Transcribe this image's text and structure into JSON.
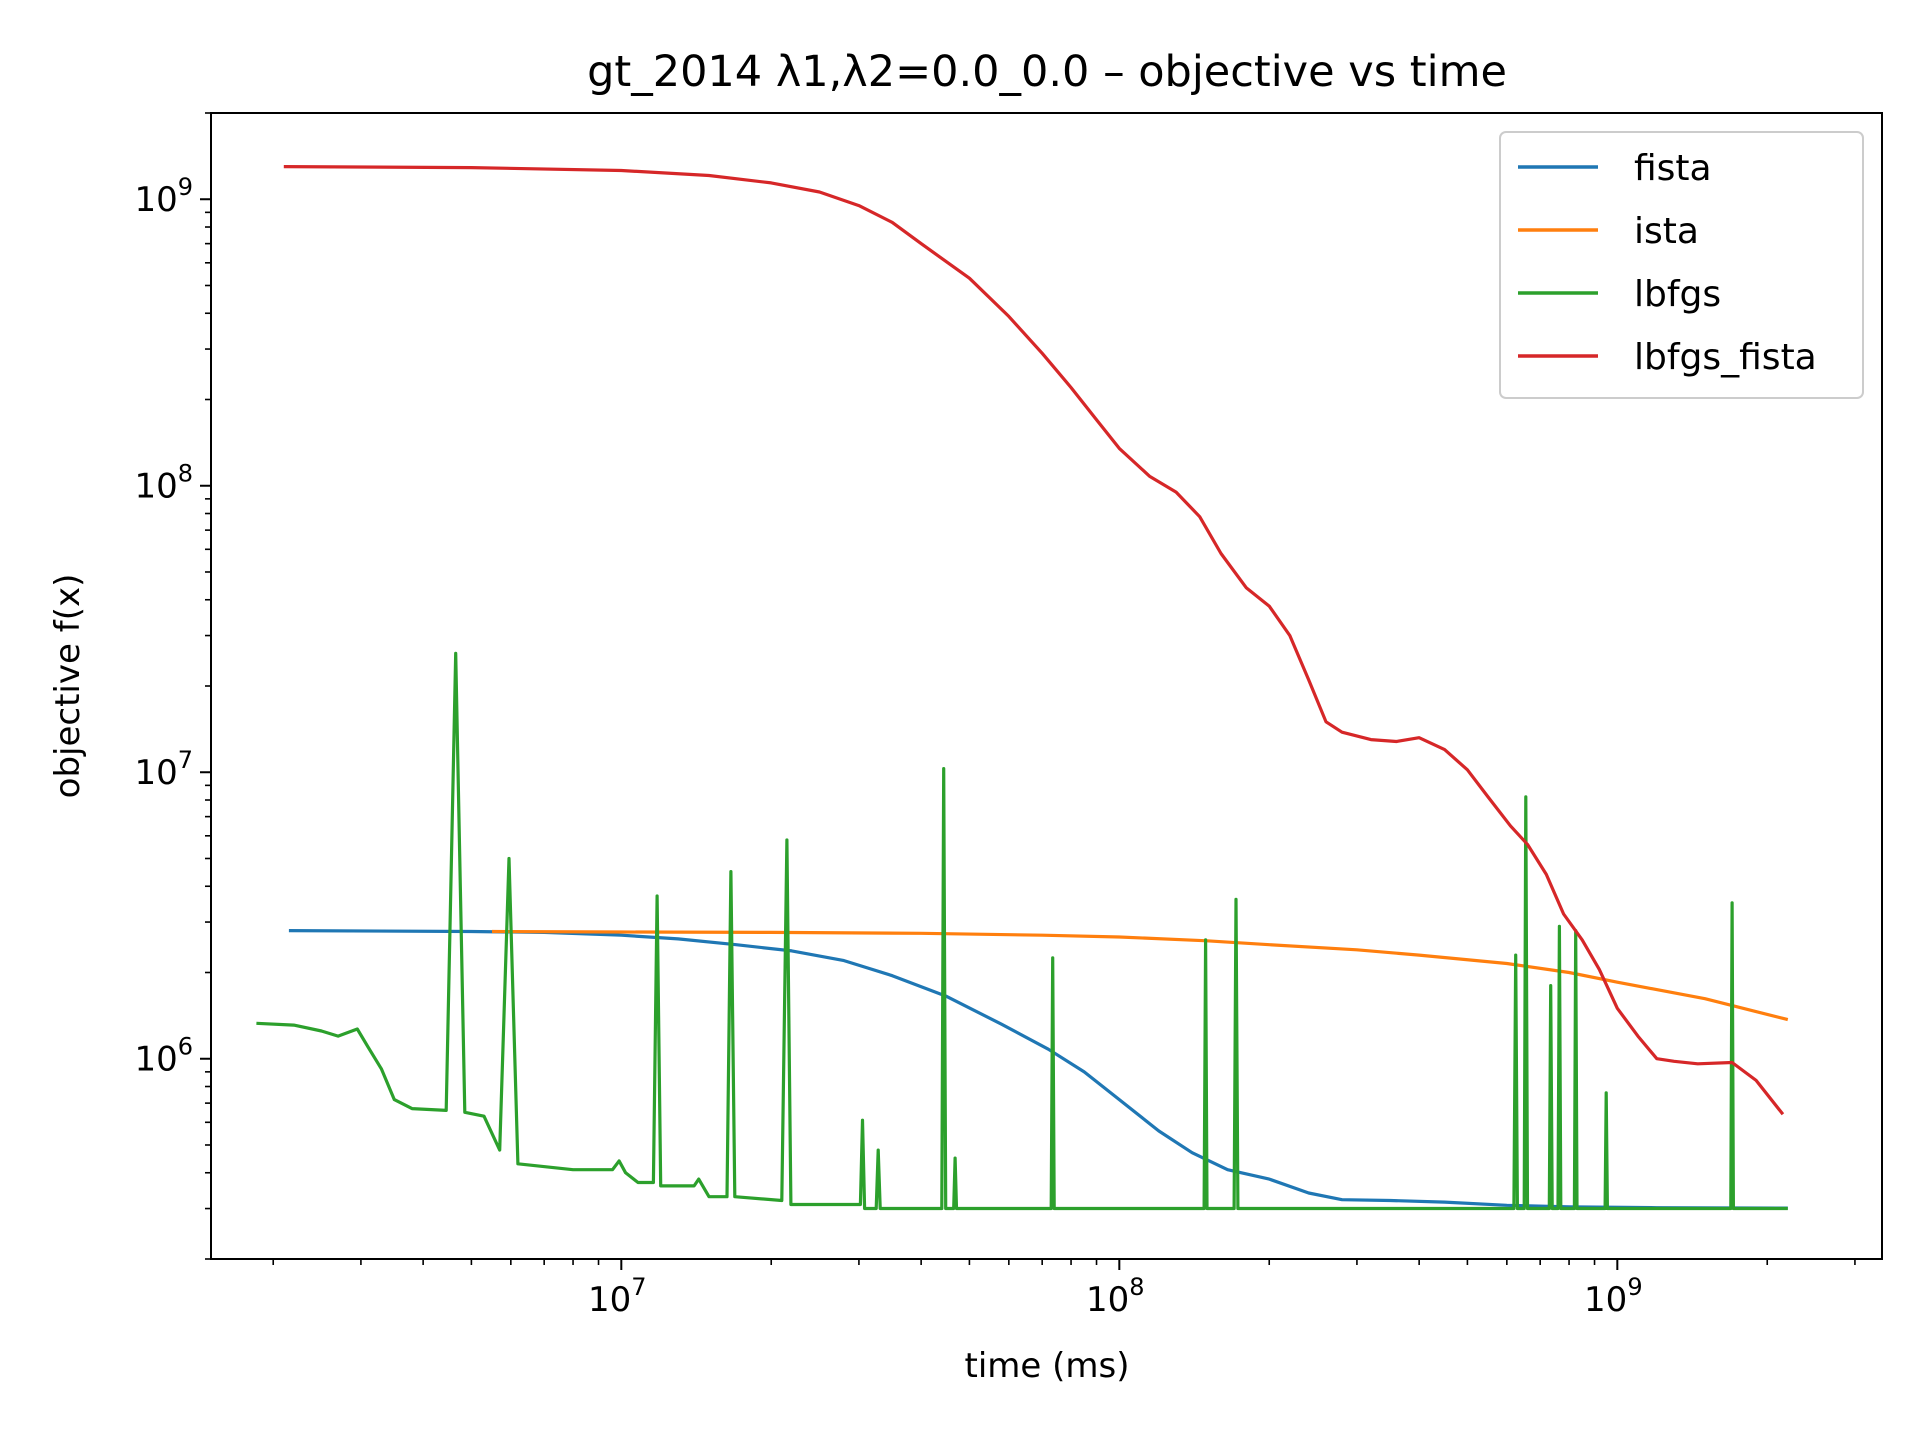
{
  "chart_data": {
    "type": "line",
    "title": "gt_2014   λ1,λ2=0.0_0.0  –  objective vs time",
    "xlabel": "time (ms)",
    "ylabel": "objective f(x)",
    "xscale": "log",
    "yscale": "log",
    "xlim": [
      1500000,
      3400000000
    ],
    "ylim": [
      200000,
      2000000000
    ],
    "x_ticks": [
      {
        "value": 10000000,
        "base": "10",
        "exp": "7"
      },
      {
        "value": 100000000,
        "base": "10",
        "exp": "8"
      },
      {
        "value": 1000000000,
        "base": "10",
        "exp": "9"
      }
    ],
    "y_ticks": [
      {
        "value": 1000000,
        "base": "10",
        "exp": "6"
      },
      {
        "value": 10000000,
        "base": "10",
        "exp": "7"
      },
      {
        "value": 100000000,
        "base": "10",
        "exp": "8"
      },
      {
        "value": 1000000000,
        "base": "10",
        "exp": "9"
      }
    ],
    "legend_position": "top-right",
    "series": [
      {
        "name": "fista",
        "color": "#1f77b4",
        "points": [
          [
            2150000,
            2800000
          ],
          [
            5000000,
            2780000
          ],
          [
            7000000,
            2760000
          ],
          [
            10000000,
            2700000
          ],
          [
            13000000,
            2620000
          ],
          [
            17000000,
            2500000
          ],
          [
            22000000,
            2380000
          ],
          [
            28000000,
            2200000
          ],
          [
            35000000,
            1950000
          ],
          [
            45000000,
            1650000
          ],
          [
            58000000,
            1320000
          ],
          [
            72000000,
            1080000
          ],
          [
            85000000,
            900000
          ],
          [
            100000000,
            720000
          ],
          [
            120000000,
            560000
          ],
          [
            140000000,
            470000
          ],
          [
            165000000,
            410000
          ],
          [
            200000000,
            380000
          ],
          [
            240000000,
            340000
          ],
          [
            280000000,
            322000
          ],
          [
            350000000,
            320000
          ],
          [
            450000000,
            316000
          ],
          [
            600000000,
            308000
          ],
          [
            800000000,
            304000
          ],
          [
            1200000000,
            302000
          ],
          [
            2200000000,
            301000
          ]
        ]
      },
      {
        "name": "ista",
        "color": "#ff7f0e",
        "points": [
          [
            5500000,
            2780000
          ],
          [
            10000000,
            2770000
          ],
          [
            20000000,
            2760000
          ],
          [
            40000000,
            2740000
          ],
          [
            70000000,
            2700000
          ],
          [
            100000000,
            2660000
          ],
          [
            150000000,
            2580000
          ],
          [
            200000000,
            2500000
          ],
          [
            300000000,
            2400000
          ],
          [
            400000000,
            2300000
          ],
          [
            600000000,
            2150000
          ],
          [
            800000000,
            2000000
          ],
          [
            1000000000,
            1850000
          ],
          [
            1500000000,
            1620000
          ],
          [
            2200000000,
            1370000
          ]
        ]
      },
      {
        "name": "lbfgs",
        "color": "#2ca02c",
        "points": [
          [
            1850000,
            1330000
          ],
          [
            2200000,
            1310000
          ],
          [
            2500000,
            1250000
          ],
          [
            2700000,
            1200000
          ],
          [
            2950000,
            1270000
          ],
          [
            3100000,
            1100000
          ],
          [
            3300000,
            920000
          ],
          [
            3500000,
            720000
          ],
          [
            3800000,
            670000
          ],
          [
            4450000,
            660000
          ],
          [
            4650000,
            26000000
          ],
          [
            4850000,
            650000
          ],
          [
            5300000,
            630000
          ],
          [
            5700000,
            480000
          ],
          [
            5950000,
            5000000
          ],
          [
            6200000,
            430000
          ],
          [
            8000000,
            410000
          ],
          [
            9600000,
            410000
          ],
          [
            9900000,
            440000
          ],
          [
            10200000,
            400000
          ],
          [
            10800000,
            370000
          ],
          [
            11600000,
            370000
          ],
          [
            11800000,
            3700000
          ],
          [
            12000000,
            360000
          ],
          [
            14000000,
            360000
          ],
          [
            14300000,
            380000
          ],
          [
            15000000,
            330000
          ],
          [
            16300000,
            330000
          ],
          [
            16600000,
            4500000
          ],
          [
            16900000,
            330000
          ],
          [
            21000000,
            320000
          ],
          [
            21500000,
            5800000
          ],
          [
            21900000,
            310000
          ],
          [
            30200000,
            310000
          ],
          [
            30500000,
            610000
          ],
          [
            30800000,
            300000
          ],
          [
            32500000,
            300000
          ],
          [
            32800000,
            480000
          ],
          [
            33100000,
            300000
          ],
          [
            44000000,
            300000
          ],
          [
            44400000,
            10300000
          ],
          [
            44800000,
            300000
          ],
          [
            46500000,
            300000
          ],
          [
            46800000,
            450000
          ],
          [
            47100000,
            300000
          ],
          [
            73000000,
            300000
          ],
          [
            73500000,
            2250000
          ],
          [
            74000000,
            300000
          ],
          [
            148000000,
            300000
          ],
          [
            149000000,
            2600000
          ],
          [
            150000000,
            300000
          ],
          [
            170000000,
            300000
          ],
          [
            171500000,
            3600000
          ],
          [
            173000000,
            300000
          ],
          [
            620000000,
            300000
          ],
          [
            625000000,
            2300000
          ],
          [
            630000000,
            300000
          ],
          [
            650000000,
            300000
          ],
          [
            655000000,
            8200000
          ],
          [
            660000000,
            300000
          ],
          [
            730000000,
            300000
          ],
          [
            735000000,
            1800000
          ],
          [
            740000000,
            300000
          ],
          [
            760000000,
            300000
          ],
          [
            765000000,
            2900000
          ],
          [
            770000000,
            300000
          ],
          [
            820000000,
            300000
          ],
          [
            825000000,
            2800000
          ],
          [
            830000000,
            300000
          ],
          [
            945000000,
            300000
          ],
          [
            950000000,
            760000
          ],
          [
            955000000,
            300000
          ],
          [
            1690000000,
            300000
          ],
          [
            1700000000,
            3500000
          ],
          [
            1710000000,
            300000
          ],
          [
            2200000000,
            300000
          ]
        ]
      },
      {
        "name": "lbfgs_fista",
        "color": "#d62728",
        "points": [
          [
            2100000,
            1300000000
          ],
          [
            5000000,
            1290000000
          ],
          [
            10000000,
            1260000000
          ],
          [
            15000000,
            1210000000
          ],
          [
            20000000,
            1140000000
          ],
          [
            25000000,
            1060000000
          ],
          [
            30000000,
            950000000
          ],
          [
            35000000,
            830000000
          ],
          [
            40000000,
            700000000
          ],
          [
            50000000,
            530000000
          ],
          [
            60000000,
            390000000
          ],
          [
            70000000,
            290000000
          ],
          [
            80000000,
            220000000
          ],
          [
            90000000,
            170000000
          ],
          [
            100000000,
            135000000
          ],
          [
            115000000,
            108000000
          ],
          [
            130000000,
            95000000
          ],
          [
            145000000,
            78000000
          ],
          [
            160000000,
            58000000
          ],
          [
            180000000,
            44000000
          ],
          [
            200000000,
            38000000
          ],
          [
            220000000,
            30000000
          ],
          [
            240000000,
            21000000
          ],
          [
            260000000,
            15000000
          ],
          [
            280000000,
            13800000
          ],
          [
            320000000,
            13000000
          ],
          [
            360000000,
            12800000
          ],
          [
            400000000,
            13200000
          ],
          [
            450000000,
            12000000
          ],
          [
            500000000,
            10200000
          ],
          [
            550000000,
            8200000
          ],
          [
            610000000,
            6500000
          ],
          [
            660000000,
            5600000
          ],
          [
            720000000,
            4400000
          ],
          [
            780000000,
            3200000
          ],
          [
            850000000,
            2600000
          ],
          [
            920000000,
            2050000
          ],
          [
            1000000000,
            1500000
          ],
          [
            1100000000,
            1200000
          ],
          [
            1200000000,
            1000000
          ],
          [
            1300000000,
            980000
          ],
          [
            1450000000,
            960000
          ],
          [
            1700000000,
            970000
          ],
          [
            1900000000,
            840000
          ],
          [
            2150000000,
            640000
          ]
        ]
      }
    ]
  }
}
